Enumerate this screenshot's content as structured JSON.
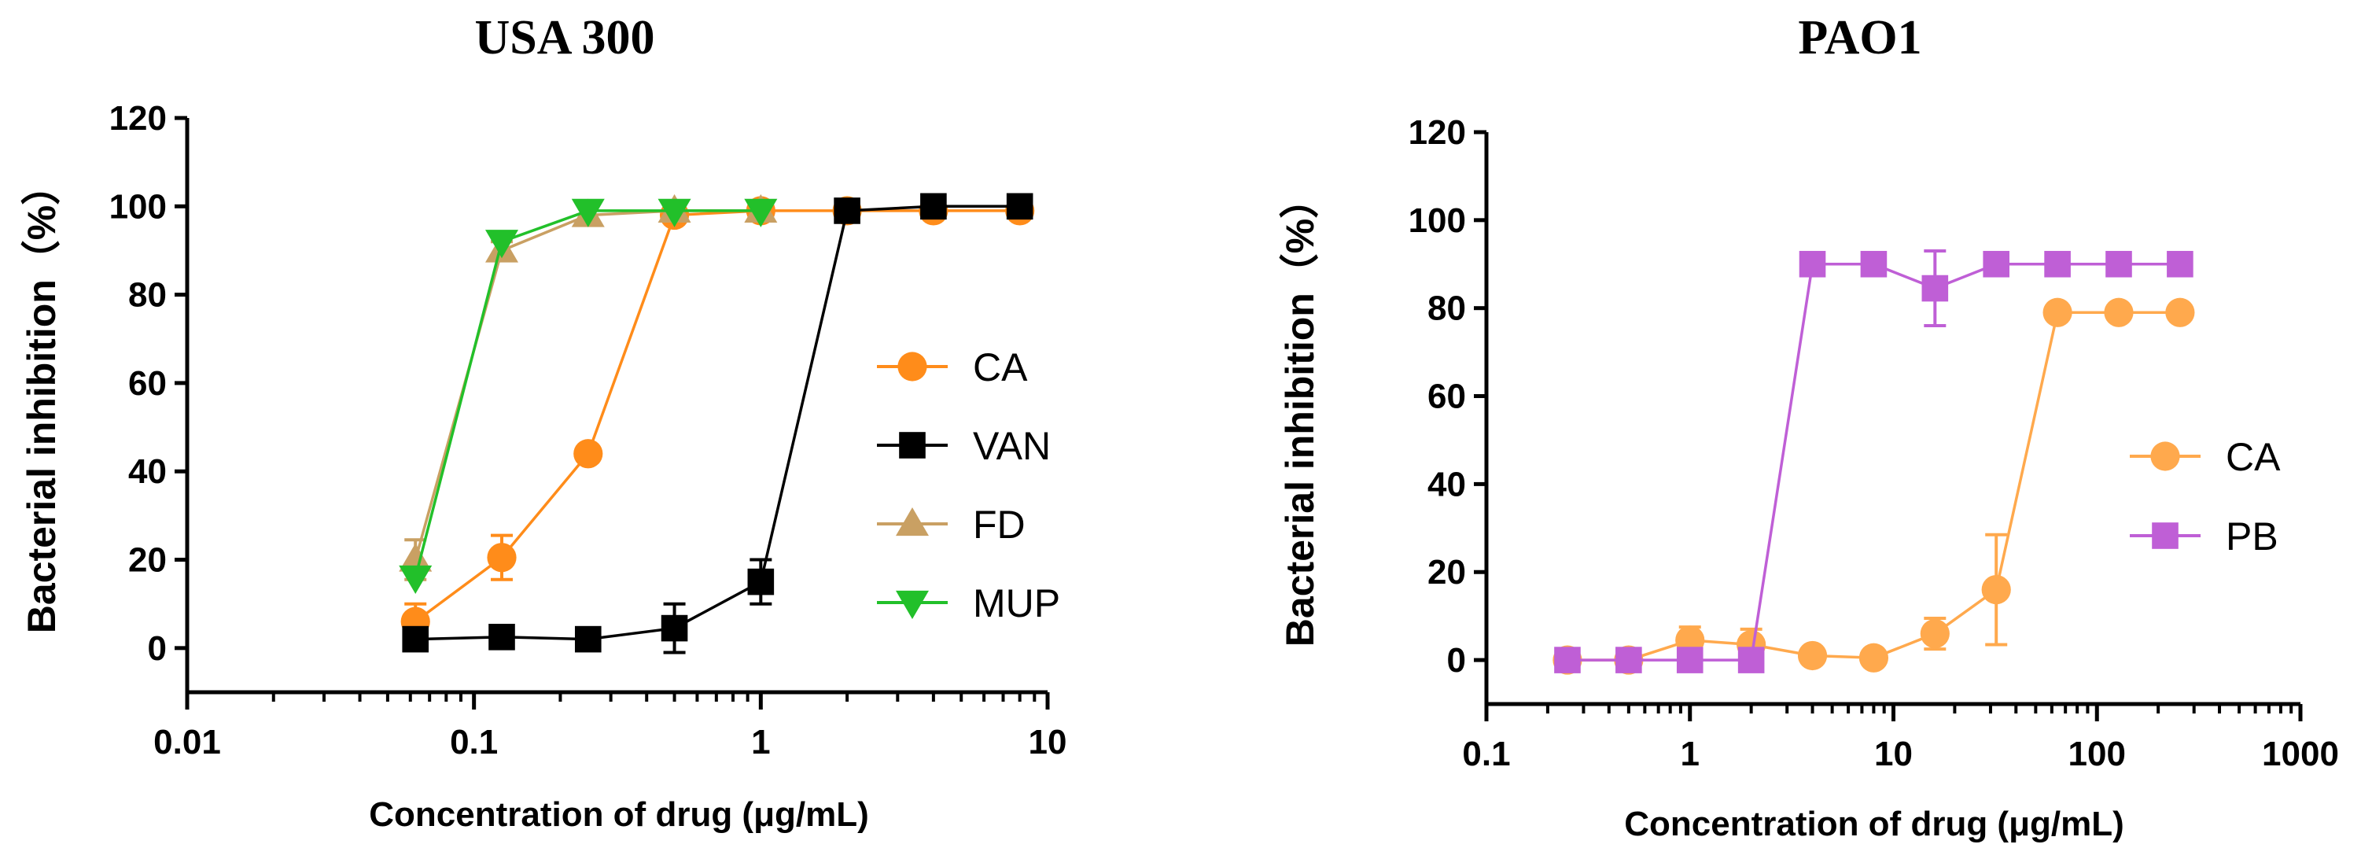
{
  "chart_data": [
    {
      "type": "line",
      "title": "USA 300",
      "xlabel": "Concentration of drug (μg/mL)",
      "ylabel": "Bacterial inhibition（%）",
      "xscale": "log",
      "xlim": [
        0.01,
        10
      ],
      "ylim": [
        -10,
        120
      ],
      "xticks": [
        0.01,
        0.1,
        1,
        10
      ],
      "xtick_labels": [
        "0.01",
        "0.1",
        "1",
        "10"
      ],
      "yticks": [
        0,
        20,
        40,
        60,
        80,
        100,
        120
      ],
      "ytick_labels": [
        "0",
        "20",
        "40",
        "60",
        "80",
        "100",
        "120"
      ],
      "legend_position": "center-right",
      "series": [
        {
          "name": "CA",
          "color": "#ff8c1a",
          "marker": "circle",
          "x": [
            0.0625,
            0.125,
            0.25,
            0.5,
            1,
            2,
            4,
            8
          ],
          "y": [
            6,
            20.5,
            44,
            98,
            99,
            99,
            99,
            99
          ],
          "err": [
            4,
            5,
            0,
            0,
            0,
            0,
            0,
            0
          ]
        },
        {
          "name": "VAN",
          "color": "#000000",
          "marker": "square",
          "x": [
            0.0625,
            0.125,
            0.25,
            0.5,
            1,
            2,
            4,
            8
          ],
          "y": [
            2,
            2.5,
            2,
            4.5,
            15,
            99,
            100,
            100
          ],
          "err": [
            0,
            0,
            2,
            5.5,
            5,
            0,
            0,
            0
          ]
        },
        {
          "name": "FD",
          "color": "#c9a063",
          "marker": "triangle-up",
          "x": [
            0.0625,
            0.125,
            0.25,
            0.5,
            1
          ],
          "y": [
            20,
            90,
            98,
            99,
            99
          ],
          "err": [
            4.5,
            2,
            0,
            0,
            0
          ]
        },
        {
          "name": "MUP",
          "color": "#22c02a",
          "marker": "triangle-down",
          "x": [
            0.0625,
            0.125,
            0.25,
            0.5,
            1
          ],
          "y": [
            16,
            92,
            99,
            99,
            99
          ],
          "err": [
            0,
            0,
            0,
            0,
            0
          ]
        }
      ]
    },
    {
      "type": "line",
      "title": "PAO1",
      "xlabel": "Concentration of drug (μg/mL)",
      "ylabel": "Bacterial inhibition（%）",
      "xscale": "log",
      "xlim": [
        0.1,
        1000
      ],
      "ylim": [
        -10,
        120
      ],
      "xticks": [
        0.1,
        1,
        10,
        100,
        1000
      ],
      "xtick_labels": [
        "0.1",
        "1",
        "10",
        "100",
        "1000"
      ],
      "yticks": [
        0,
        20,
        40,
        60,
        80,
        100,
        120
      ],
      "ytick_labels": [
        "0",
        "20",
        "40",
        "60",
        "80",
        "100",
        "120"
      ],
      "legend_position": "center-right",
      "series": [
        {
          "name": "CA",
          "color": "#ffa94d",
          "marker": "circle",
          "x": [
            0.25,
            0.5,
            1,
            2,
            4,
            8,
            16,
            32,
            64,
            128,
            256
          ],
          "y": [
            0,
            0,
            4.5,
            3.5,
            1,
            0.5,
            6,
            16,
            79,
            79,
            79
          ],
          "err": [
            0,
            0,
            3,
            3.5,
            0,
            0,
            3.5,
            12.5,
            0,
            0,
            0
          ]
        },
        {
          "name": "PB",
          "color": "#bf5fd6",
          "marker": "square",
          "x": [
            0.25,
            0.5,
            1,
            2,
            4,
            8,
            16,
            32,
            64,
            128,
            256
          ],
          "y": [
            0,
            0,
            0,
            0,
            90,
            90,
            84.5,
            90,
            90,
            90,
            90
          ],
          "err": [
            0,
            0,
            0,
            0,
            0,
            0,
            8.5,
            0,
            0,
            0,
            0
          ]
        }
      ]
    }
  ]
}
